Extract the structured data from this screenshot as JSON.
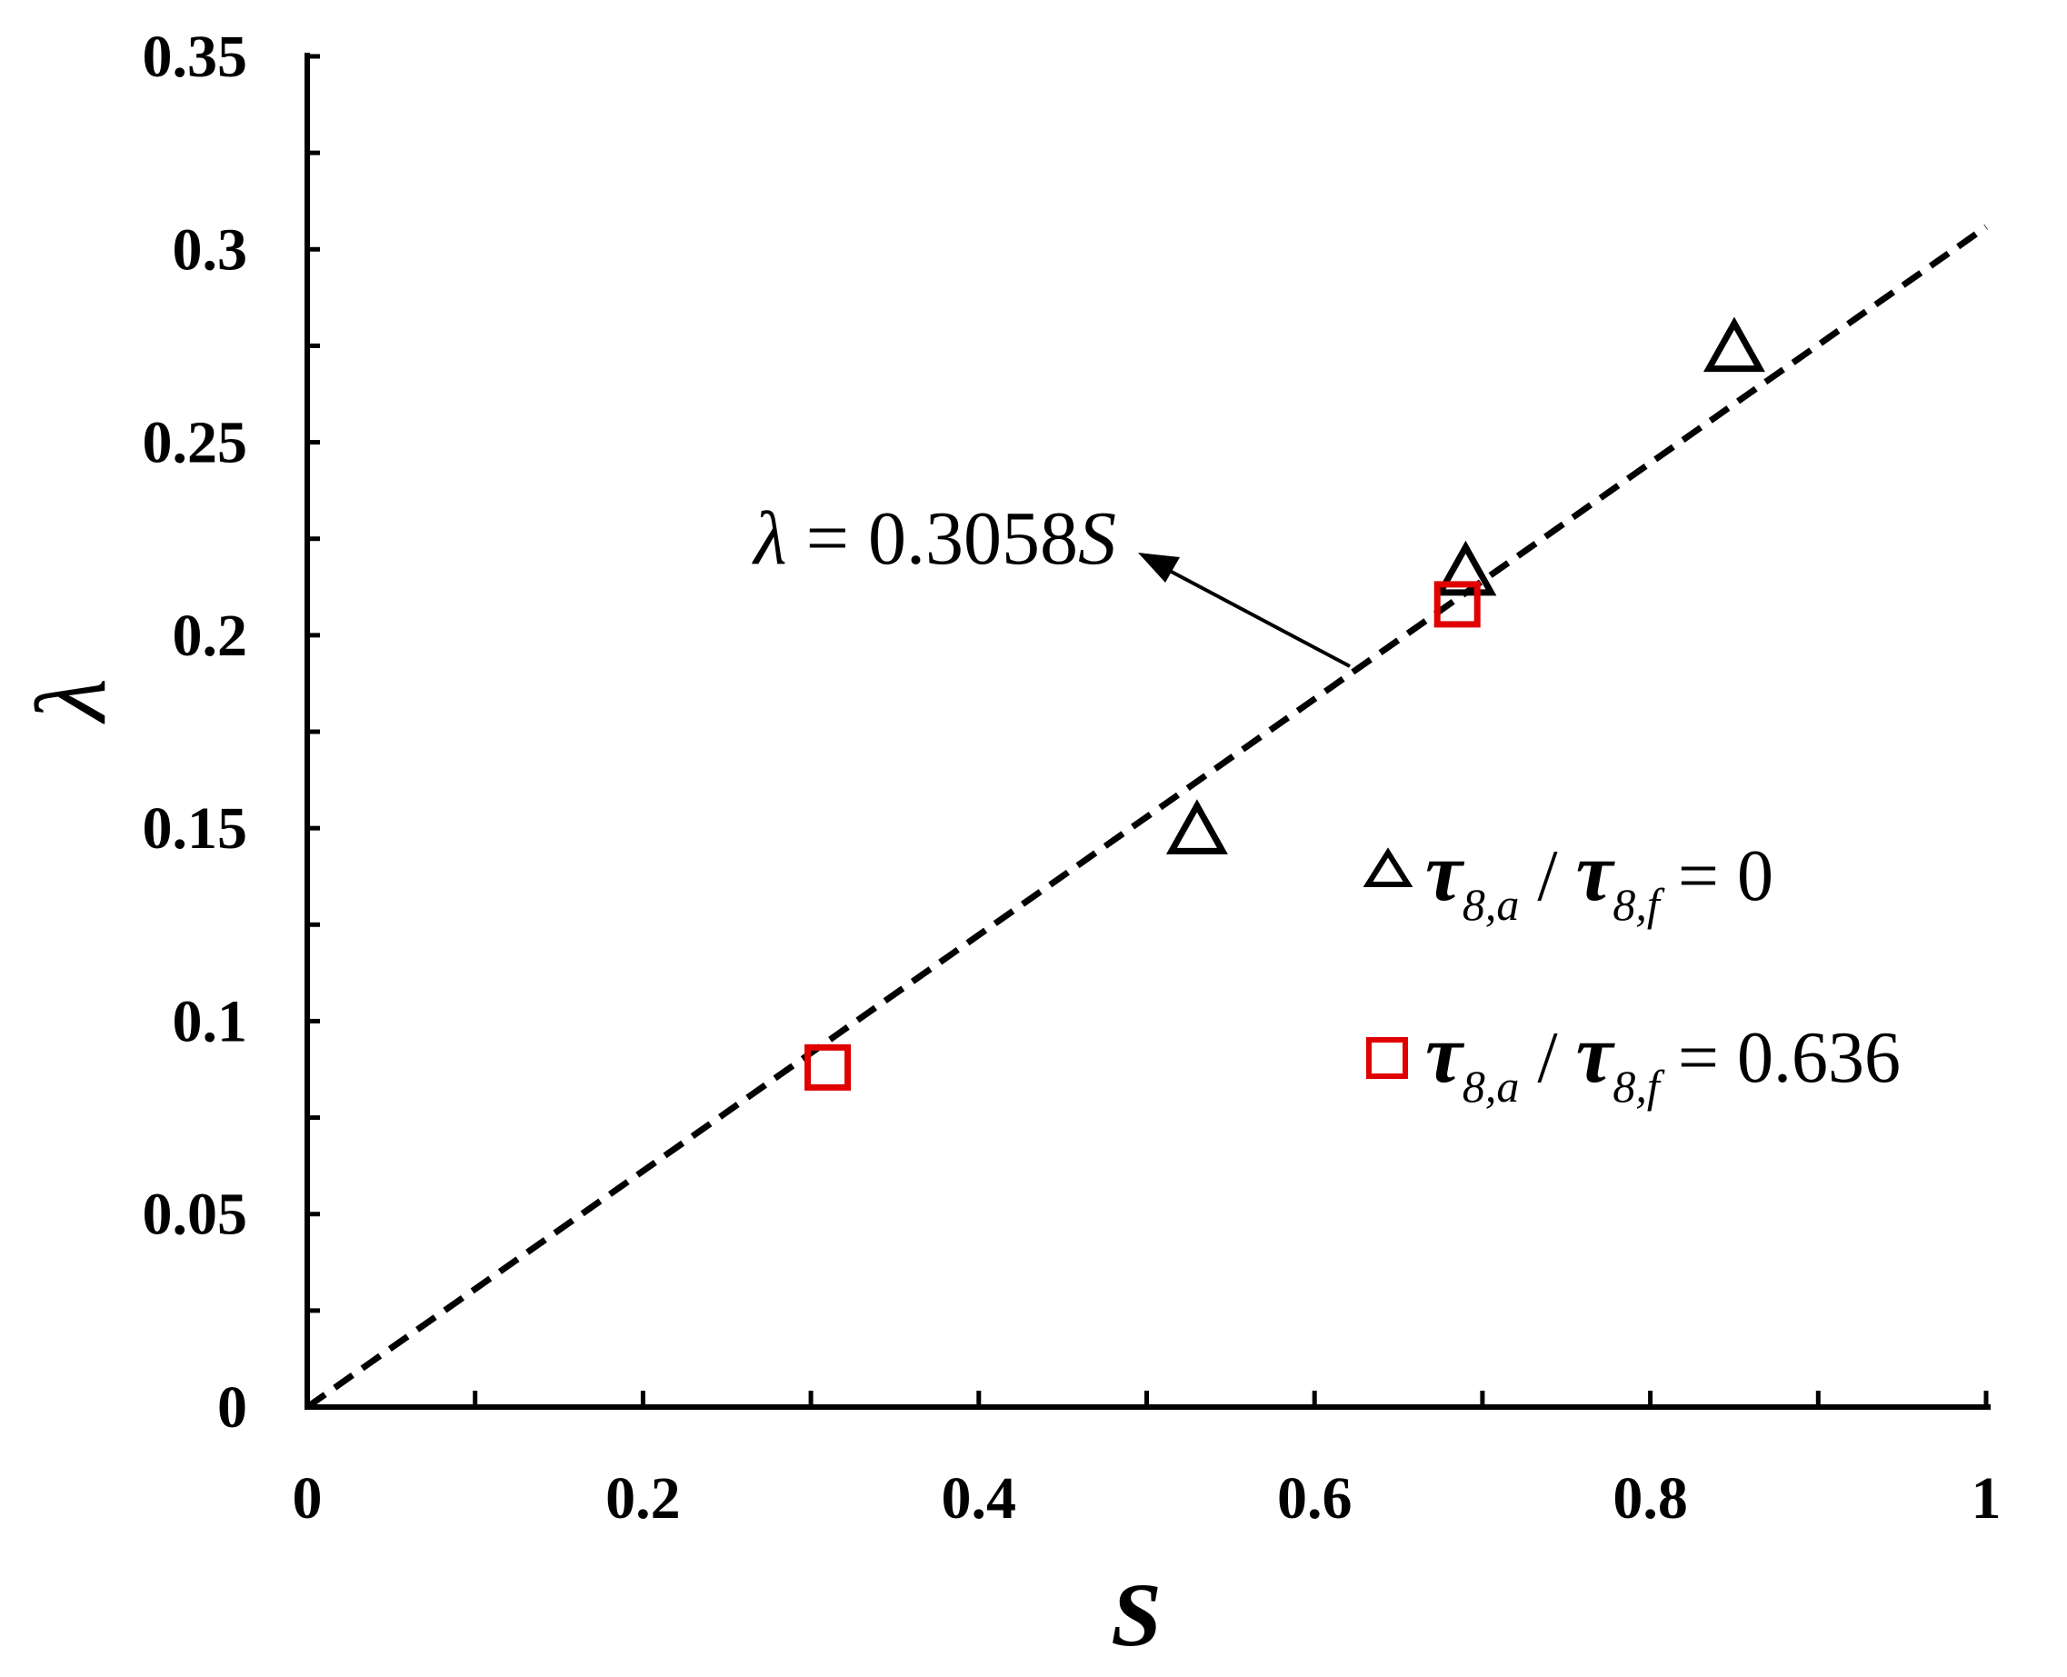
{
  "chart_data": {
    "type": "scatter",
    "xlabel": "S",
    "ylabel": "λ",
    "xlim": [
      0,
      1
    ],
    "ylim": [
      0,
      0.35
    ],
    "x_ticks": [
      0,
      0.2,
      0.4,
      0.6,
      0.8,
      1
    ],
    "x_tick_labels": [
      "0",
      "0.2",
      "0.4",
      "0.6",
      "0.8",
      "1"
    ],
    "y_ticks": [
      0,
      0.05,
      0.1,
      0.15,
      0.2,
      0.25,
      0.3,
      0.35
    ],
    "y_tick_labels": [
      "0",
      "0.05",
      "0.1",
      "0.15",
      "0.2",
      "0.25",
      "0.3",
      "0.35"
    ],
    "grid": false,
    "legend_position": "right-middle",
    "series": [
      {
        "name": "τ8,a / τ8,f = 0",
        "marker": "triangle",
        "color": "#000000",
        "x": [
          0.53,
          0.69,
          0.85
        ],
        "y": [
          0.149,
          0.216,
          0.274
        ]
      },
      {
        "name": "τ8,a / τ8,f = 0.636",
        "marker": "square",
        "color": "#e00000",
        "x": [
          0.31,
          0.685
        ],
        "y": [
          0.088,
          0.208
        ]
      }
    ],
    "fit_line": {
      "label": "λ = 0.3058S",
      "slope": 0.3058,
      "x_range": [
        0,
        1
      ],
      "style": "dashed",
      "color": "#000000"
    },
    "legend": [
      {
        "symbol": "τ",
        "sub1": "8,a",
        "sep": " / ",
        "sub2": "8,f",
        "value": "0"
      },
      {
        "symbol": "τ",
        "sub1": "8,a",
        "sep": " / ",
        "sub2": "8,f",
        "value": "0.636"
      }
    ],
    "annotation": {
      "lhs": "λ",
      "eq": " = ",
      "coef": "0.3058",
      "var": "S"
    }
  }
}
